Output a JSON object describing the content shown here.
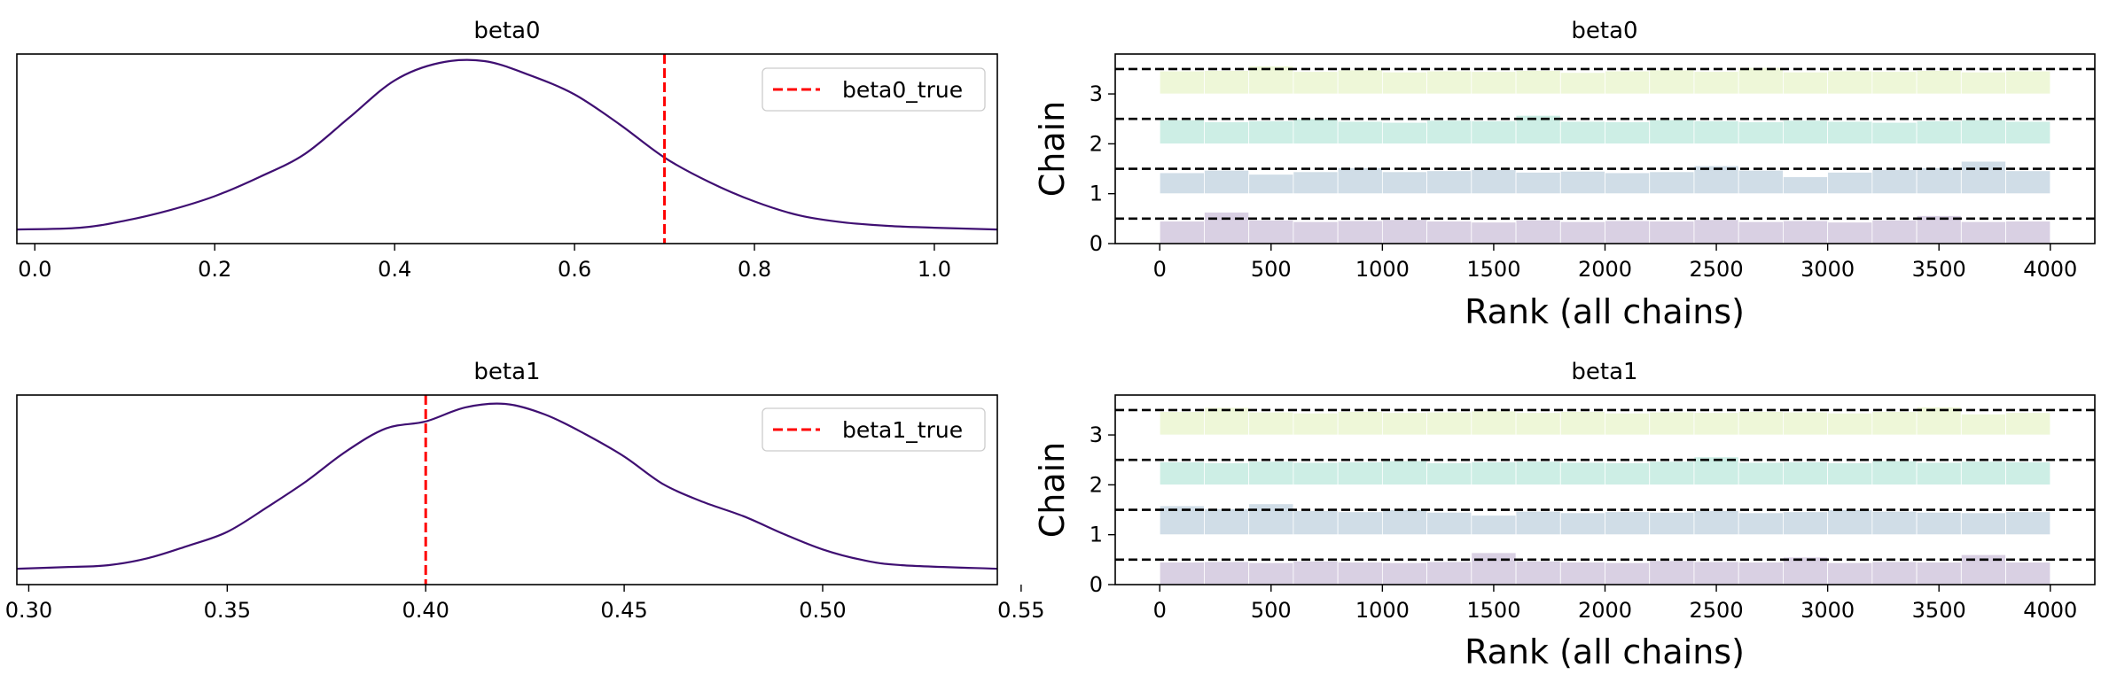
{
  "figure": {
    "background": "#ffffff"
  },
  "colors": {
    "density": "#3f0f72",
    "truth": "#ff0000",
    "chain_fills": [
      "#d9d0e3",
      "#d0dde7",
      "#cdeee5",
      "#eef7d8"
    ],
    "chain_divider": "#000000"
  },
  "chart_data": [
    {
      "type": "line",
      "panel": "beta0-density",
      "title": "beta0",
      "xlabel": "",
      "ylabel": "",
      "xlim": [
        -0.02,
        1.07
      ],
      "xticks": [
        "0.0",
        "0.2",
        "0.4",
        "0.6",
        "0.8",
        "1.0"
      ],
      "xtick_values": [
        0.0,
        0.2,
        0.4,
        0.6,
        0.8,
        1.0
      ],
      "yticks_visible": false,
      "series": [
        {
          "x": [
            -0.02,
            0.05,
            0.1,
            0.15,
            0.2,
            0.25,
            0.3,
            0.35,
            0.4,
            0.45,
            0.5,
            0.55,
            0.6,
            0.65,
            0.7,
            0.75,
            0.8,
            0.85,
            0.9,
            0.95,
            1.0,
            1.07
          ],
          "y": [
            0.04,
            0.05,
            0.09,
            0.15,
            0.23,
            0.34,
            0.47,
            0.68,
            0.89,
            0.99,
            1.0,
            0.92,
            0.81,
            0.64,
            0.45,
            0.31,
            0.2,
            0.12,
            0.08,
            0.06,
            0.05,
            0.04
          ]
        }
      ],
      "reference_line": {
        "x": 0.7,
        "label": "beta0_true"
      },
      "legend": {
        "placement": "top-right",
        "entries": [
          "beta0_true"
        ]
      }
    },
    {
      "type": "line",
      "panel": "beta1-density",
      "title": "beta1",
      "xlabel": "",
      "ylabel": "",
      "xlim": [
        0.297,
        0.544
      ],
      "xticks": [
        "0.30",
        "0.35",
        "0.40",
        "0.45",
        "0.50",
        "0.55"
      ],
      "xtick_values": [
        0.3,
        0.35,
        0.4,
        0.45,
        0.5,
        0.55
      ],
      "yticks_visible": false,
      "series": [
        {
          "x": [
            0.297,
            0.31,
            0.32,
            0.33,
            0.34,
            0.35,
            0.36,
            0.37,
            0.38,
            0.39,
            0.4,
            0.41,
            0.42,
            0.43,
            0.44,
            0.45,
            0.46,
            0.47,
            0.48,
            0.49,
            0.5,
            0.51,
            0.52,
            0.544
          ],
          "y": [
            0.05,
            0.06,
            0.07,
            0.11,
            0.18,
            0.26,
            0.4,
            0.55,
            0.72,
            0.85,
            0.89,
            0.97,
            0.99,
            0.93,
            0.82,
            0.69,
            0.53,
            0.43,
            0.35,
            0.25,
            0.16,
            0.1,
            0.07,
            0.05
          ]
        }
      ],
      "reference_line": {
        "x": 0.4,
        "label": "beta1_true"
      },
      "legend": {
        "placement": "top-right",
        "entries": [
          "beta1_true"
        ]
      }
    },
    {
      "type": "bar",
      "panel": "beta0-rank",
      "title": "beta0",
      "xlabel": "Rank (all chains)",
      "ylabel": "Chain",
      "xlim": [
        -200,
        4200
      ],
      "ylim": [
        0,
        3.8
      ],
      "xticks": [
        "0",
        "500",
        "1000",
        "1500",
        "2000",
        "2500",
        "3000",
        "3500",
        "4000"
      ],
      "xtick_values": [
        0,
        500,
        1000,
        1500,
        2000,
        2500,
        3000,
        3500,
        4000
      ],
      "yticks": [
        "0",
        "1",
        "2",
        "3"
      ],
      "ytick_values": [
        0,
        1,
        2,
        3
      ],
      "bin_edges": [
        0,
        200,
        400,
        600,
        800,
        1000,
        1200,
        1400,
        1600,
        1800,
        2000,
        2200,
        2400,
        2600,
        2800,
        3000,
        3200,
        3400,
        3600,
        3800,
        4000
      ],
      "divider_levels": [
        0.5,
        1.5,
        2.5,
        3.5
      ],
      "series": [
        {
          "name": "0",
          "values": [
            0.45,
            0.63,
            0.47,
            0.44,
            0.46,
            0.48,
            0.45,
            0.43,
            0.47,
            0.44,
            0.46,
            0.45,
            0.48,
            0.44,
            0.46,
            0.43,
            0.47,
            0.56,
            0.44,
            0.45
          ]
        },
        {
          "name": "1",
          "values": [
            0.42,
            0.47,
            0.39,
            0.44,
            0.52,
            0.44,
            0.46,
            0.48,
            0.43,
            0.45,
            0.42,
            0.44,
            0.56,
            0.47,
            0.34,
            0.43,
            0.48,
            0.52,
            0.65,
            0.46
          ]
        },
        {
          "name": "2",
          "values": [
            0.48,
            0.44,
            0.46,
            0.5,
            0.45,
            0.43,
            0.47,
            0.46,
            0.57,
            0.45,
            0.44,
            0.48,
            0.46,
            0.44,
            0.47,
            0.45,
            0.43,
            0.46,
            0.48,
            0.45
          ]
        },
        {
          "name": "3",
          "values": [
            0.46,
            0.47,
            0.56,
            0.45,
            0.48,
            0.44,
            0.46,
            0.45,
            0.47,
            0.43,
            0.46,
            0.48,
            0.45,
            0.53,
            0.44,
            0.46,
            0.45,
            0.47,
            0.44,
            0.46
          ]
        }
      ]
    },
    {
      "type": "bar",
      "panel": "beta1-rank",
      "title": "beta1",
      "xlabel": "Rank (all chains)",
      "ylabel": "Chain",
      "xlim": [
        -200,
        4200
      ],
      "ylim": [
        0,
        3.8
      ],
      "xticks": [
        "0",
        "500",
        "1000",
        "1500",
        "2000",
        "2500",
        "3000",
        "3500",
        "4000"
      ],
      "xtick_values": [
        0,
        500,
        1000,
        1500,
        2000,
        2500,
        3000,
        3500,
        4000
      ],
      "yticks": [
        "0",
        "1",
        "2",
        "3"
      ],
      "ytick_values": [
        0,
        1,
        2,
        3
      ],
      "bin_edges": [
        0,
        200,
        400,
        600,
        800,
        1000,
        1200,
        1400,
        1600,
        1800,
        2000,
        2200,
        2400,
        2600,
        2800,
        3000,
        3200,
        3400,
        3600,
        3800,
        4000
      ],
      "divider_levels": [
        0.5,
        1.5,
        2.5,
        3.5
      ],
      "series": [
        {
          "name": "0",
          "values": [
            0.45,
            0.46,
            0.44,
            0.47,
            0.45,
            0.44,
            0.46,
            0.64,
            0.47,
            0.45,
            0.44,
            0.48,
            0.46,
            0.45,
            0.55,
            0.44,
            0.46,
            0.45,
            0.6,
            0.45
          ]
        },
        {
          "name": "1",
          "values": [
            0.58,
            0.52,
            0.62,
            0.48,
            0.46,
            0.5,
            0.45,
            0.39,
            0.47,
            0.44,
            0.46,
            0.45,
            0.48,
            0.44,
            0.46,
            0.5,
            0.47,
            0.45,
            0.44,
            0.46
          ]
        },
        {
          "name": "2",
          "values": [
            0.46,
            0.44,
            0.47,
            0.45,
            0.46,
            0.48,
            0.44,
            0.46,
            0.47,
            0.45,
            0.44,
            0.47,
            0.56,
            0.45,
            0.46,
            0.44,
            0.48,
            0.45,
            0.47,
            0.46
          ]
        },
        {
          "name": "3",
          "values": [
            0.47,
            0.55,
            0.46,
            0.44,
            0.47,
            0.45,
            0.46,
            0.48,
            0.45,
            0.47,
            0.44,
            0.46,
            0.45,
            0.47,
            0.46,
            0.44,
            0.47,
            0.56,
            0.42,
            0.45
          ]
        }
      ]
    }
  ]
}
